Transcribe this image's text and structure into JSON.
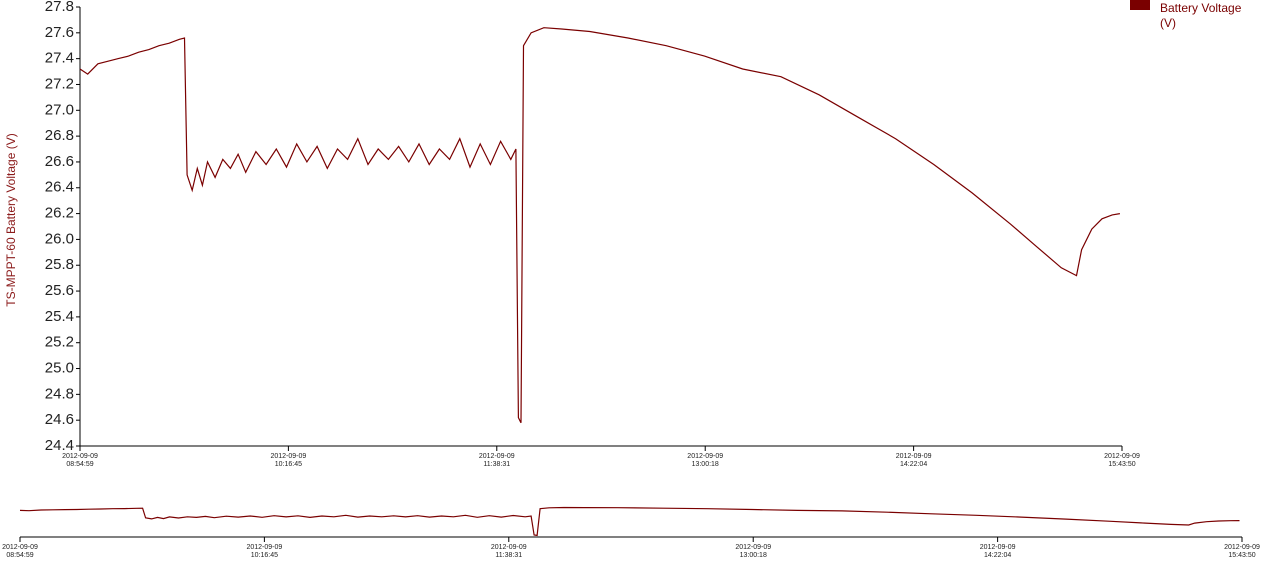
{
  "chart_data": {
    "type": "line",
    "y_label": "TS-MPPT-60 Battery Voltage (V)",
    "x": [
      "2012-09-09T08:55:00",
      "2012-09-09T08:58:00",
      "2012-09-09T09:02:00",
      "2012-09-09T09:06:00",
      "2012-09-09T09:10:00",
      "2012-09-09T09:14:00",
      "2012-09-09T09:18:00",
      "2012-09-09T09:22:00",
      "2012-09-09T09:26:00",
      "2012-09-09T09:30:00",
      "2012-09-09T09:34:00",
      "2012-09-09T09:36:00",
      "2012-09-09T09:37:00",
      "2012-09-09T09:39:00",
      "2012-09-09T09:41:00",
      "2012-09-09T09:43:00",
      "2012-09-09T09:45:00",
      "2012-09-09T09:48:00",
      "2012-09-09T09:51:00",
      "2012-09-09T09:54:00",
      "2012-09-09T09:57:00",
      "2012-09-09T10:00:00",
      "2012-09-09T10:04:00",
      "2012-09-09T10:08:00",
      "2012-09-09T10:12:00",
      "2012-09-09T10:16:00",
      "2012-09-09T10:20:00",
      "2012-09-09T10:24:00",
      "2012-09-09T10:28:00",
      "2012-09-09T10:32:00",
      "2012-09-09T10:36:00",
      "2012-09-09T10:40:00",
      "2012-09-09T10:44:00",
      "2012-09-09T10:48:00",
      "2012-09-09T10:52:00",
      "2012-09-09T10:56:00",
      "2012-09-09T11:00:00",
      "2012-09-09T11:04:00",
      "2012-09-09T11:08:00",
      "2012-09-09T11:12:00",
      "2012-09-09T11:16:00",
      "2012-09-09T11:20:00",
      "2012-09-09T11:24:00",
      "2012-09-09T11:28:00",
      "2012-09-09T11:32:00",
      "2012-09-09T11:36:00",
      "2012-09-09T11:40:00",
      "2012-09-09T11:44:00",
      "2012-09-09T11:46:00",
      "2012-09-09T11:47:00",
      "2012-09-09T11:48:00",
      "2012-09-09T11:49:00",
      "2012-09-09T11:52:00",
      "2012-09-09T11:57:00",
      "2012-09-09T12:04:00",
      "2012-09-09T12:15:00",
      "2012-09-09T12:30:00",
      "2012-09-09T12:45:00",
      "2012-09-09T13:00:00",
      "2012-09-09T13:15:00",
      "2012-09-09T13:30:00",
      "2012-09-09T13:45:00",
      "2012-09-09T14:00:00",
      "2012-09-09T14:15:00",
      "2012-09-09T14:30:00",
      "2012-09-09T14:45:00",
      "2012-09-09T15:00:00",
      "2012-09-09T15:10:00",
      "2012-09-09T15:20:00",
      "2012-09-09T15:26:00",
      "2012-09-09T15:28:00",
      "2012-09-09T15:32:00",
      "2012-09-09T15:36:00",
      "2012-09-09T15:40:00",
      "2012-09-09T15:43:00"
    ],
    "series": [
      {
        "name": "TS-MPPT-60 Battery Voltage (V)",
        "color": "#7a0000",
        "values": [
          27.32,
          27.28,
          27.36,
          27.38,
          27.4,
          27.42,
          27.45,
          27.47,
          27.5,
          27.52,
          27.55,
          27.56,
          26.5,
          26.38,
          26.55,
          26.42,
          26.6,
          26.48,
          26.62,
          26.55,
          26.66,
          26.52,
          26.68,
          26.58,
          26.7,
          26.56,
          26.74,
          26.6,
          26.72,
          26.55,
          26.7,
          26.62,
          26.78,
          26.58,
          26.7,
          26.62,
          26.72,
          26.6,
          26.74,
          26.58,
          26.7,
          26.62,
          26.78,
          26.56,
          26.74,
          26.58,
          26.76,
          26.62,
          26.7,
          24.62,
          24.58,
          27.5,
          27.6,
          27.64,
          27.63,
          27.61,
          27.56,
          27.5,
          27.42,
          27.32,
          27.26,
          27.12,
          26.95,
          26.78,
          26.58,
          26.36,
          26.12,
          25.95,
          25.78,
          25.72,
          25.92,
          26.08,
          26.16,
          26.19,
          26.2
        ]
      }
    ],
    "xlim": [
      "2012-09-09T08:54:59",
      "2012-09-09T15:43:50"
    ],
    "xticks": [
      {
        "value": "2012-09-09T08:54:59",
        "label": "2012-09-09 08:54:59"
      },
      {
        "value": "2012-09-09T10:16:45",
        "label": "2012-09-09 10:16:45"
      },
      {
        "value": "2012-09-09T11:38:31",
        "label": "2012-09-09 11:38:31"
      },
      {
        "value": "2012-09-09T13:00:18",
        "label": "2012-09-09 13:00:18"
      },
      {
        "value": "2012-09-09T14:22:04",
        "label": "2012-09-09 14:22:04"
      },
      {
        "value": "2012-09-09T15:43:50",
        "label": "2012-09-09 15:43:50"
      }
    ],
    "ylim": [
      24.4,
      27.8
    ],
    "yticks": [
      24.4,
      24.6,
      24.8,
      {
        "value": 25,
        "label": "25.0"
      },
      25.2,
      25.4,
      25.6,
      25.8,
      {
        "value": 26,
        "label": "26.0"
      },
      26.2,
      26.4,
      26.6,
      26.8,
      {
        "value": 27,
        "label": "27.0"
      },
      27.2,
      27.4,
      27.6,
      27.8
    ],
    "grid": false,
    "legend": "top-right"
  }
}
